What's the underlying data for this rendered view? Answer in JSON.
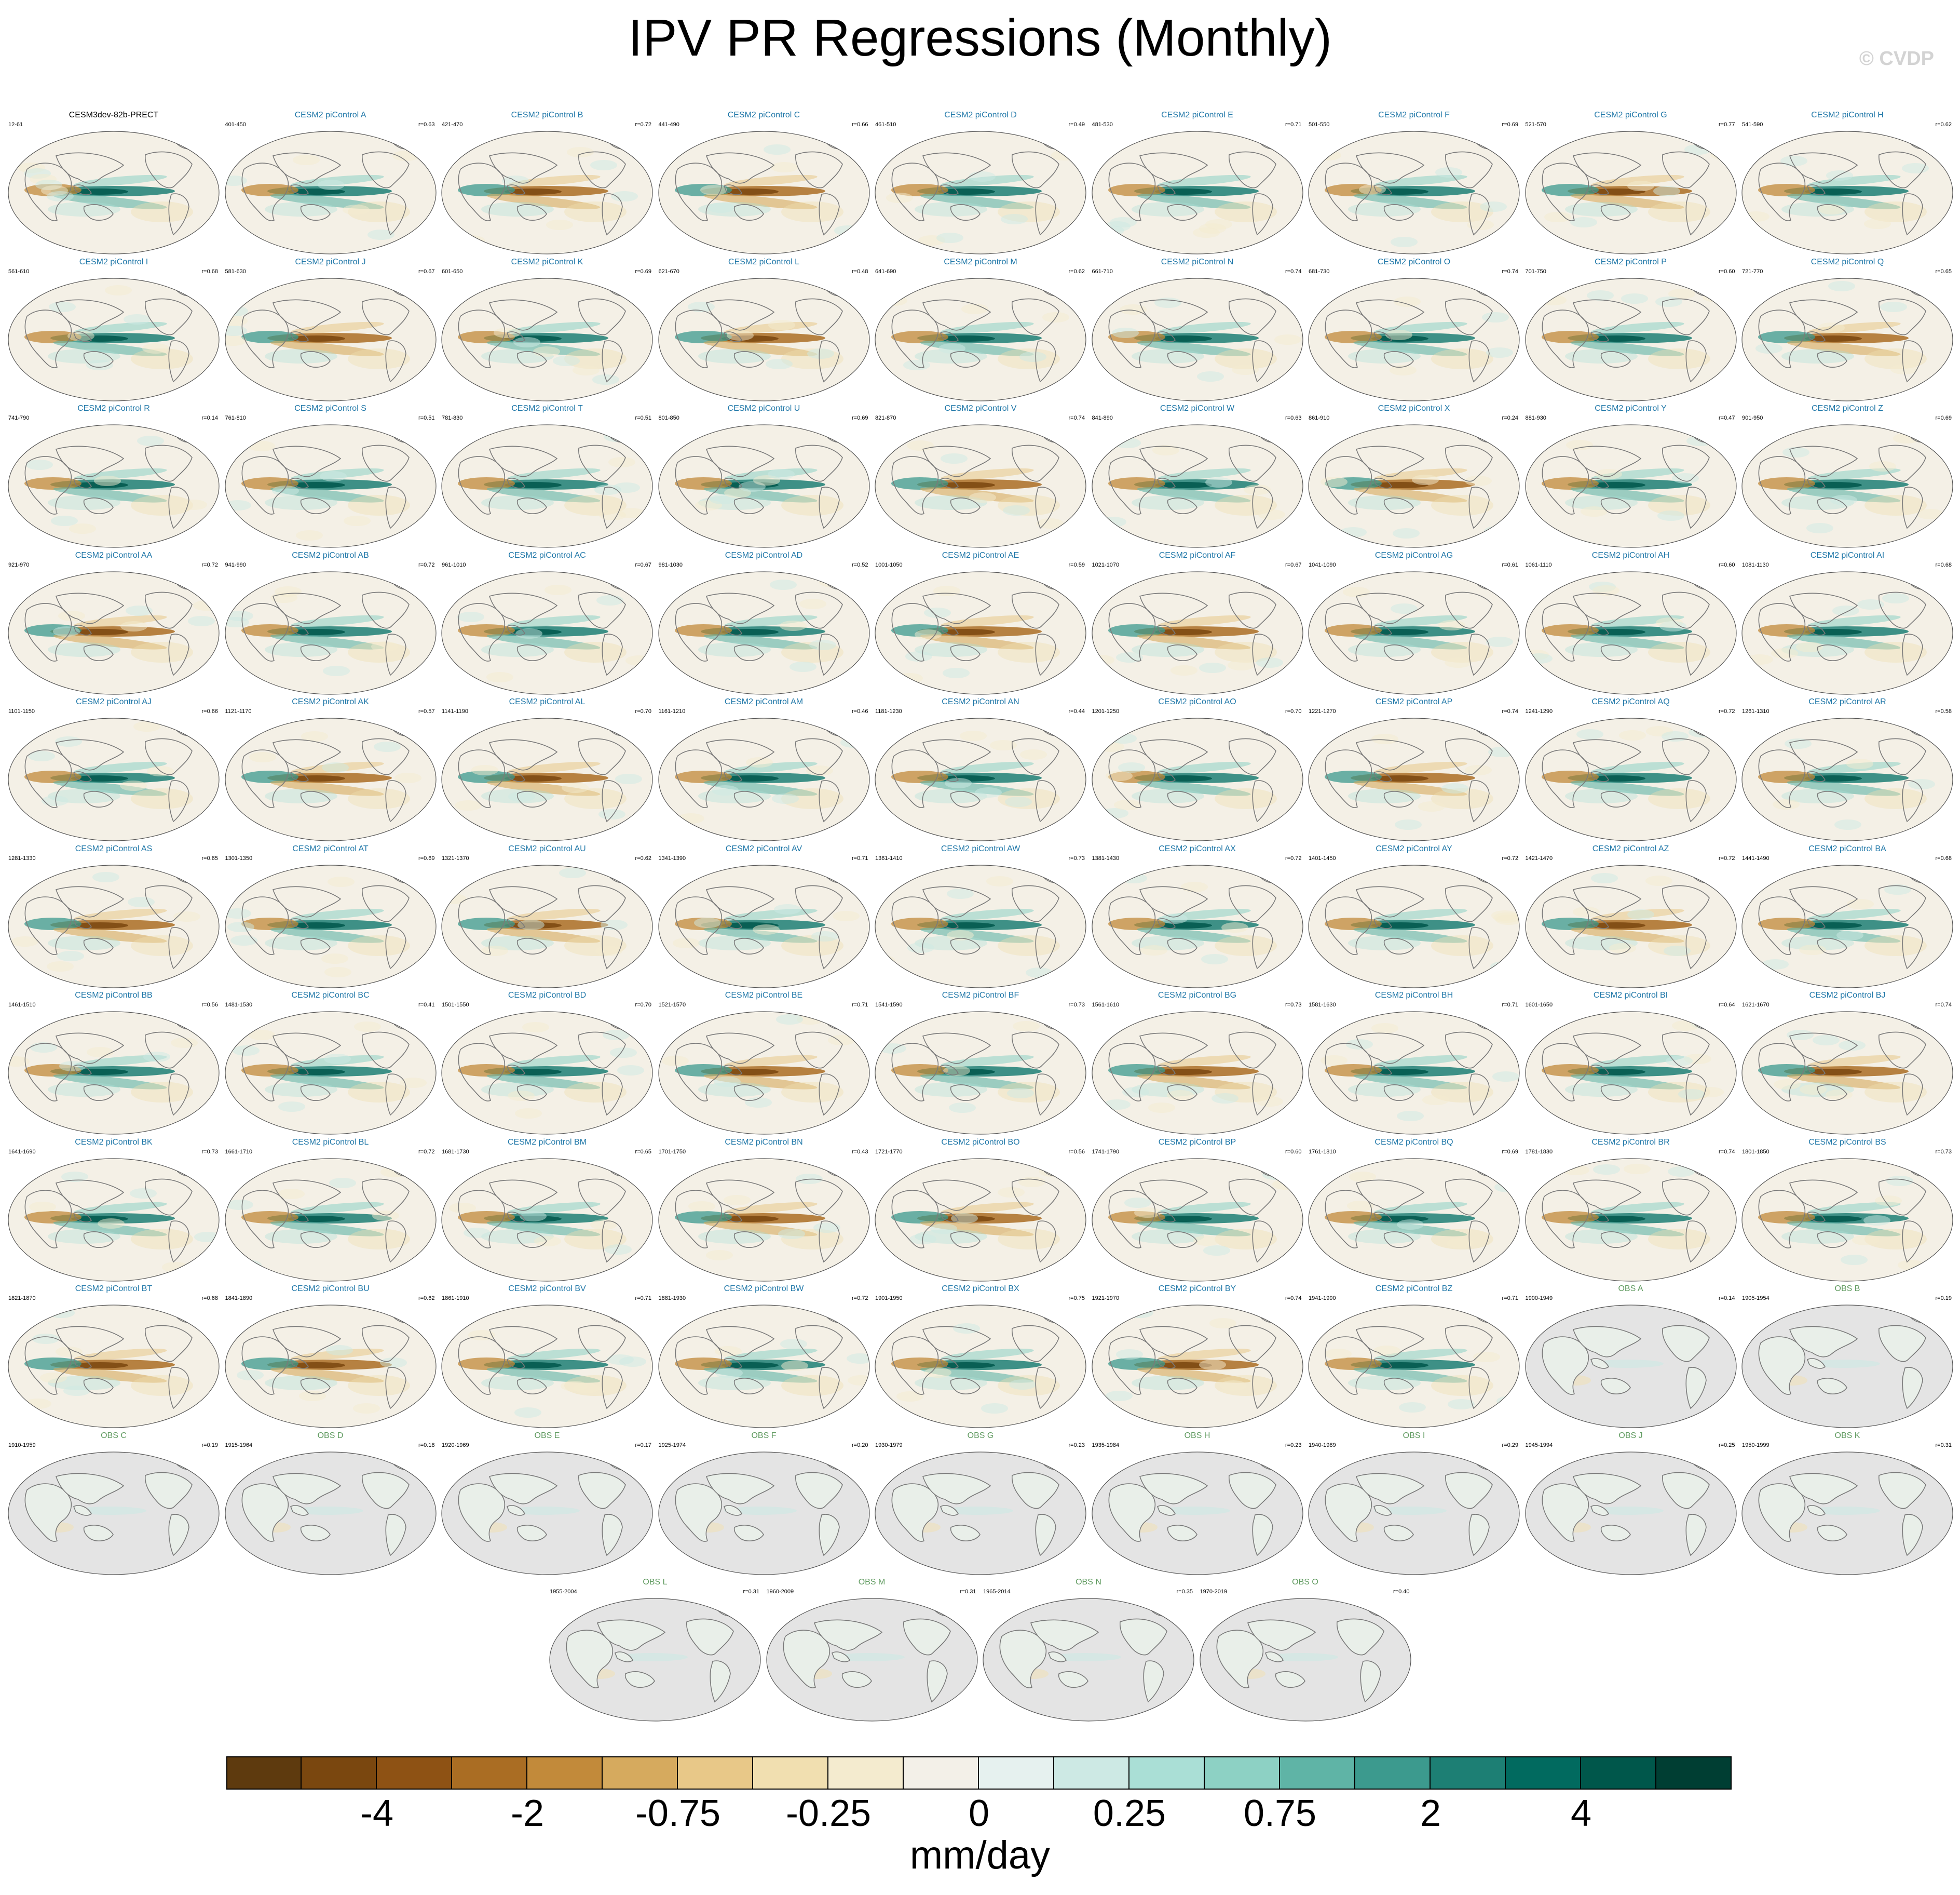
{
  "title": "IPV PR Regressions (Monthly)",
  "copyright": "© CVDP",
  "chart_data": {
    "type": "map-panel-grid",
    "title": "IPV PR Regressions (Monthly)",
    "variable": "PR (precipitation) regression onto IPV",
    "units": "mm/day",
    "projection": "Robinson, Pacific-centered",
    "colorbar": {
      "tick_labels": [
        "-4",
        "-2",
        "-0.75",
        "-0.25",
        "0",
        "0.25",
        "0.75",
        "2",
        "4"
      ],
      "colors": [
        "#5e3a0e",
        "#7a470f",
        "#8e5214",
        "#aa6d23",
        "#c28a3a",
        "#d6aa5e",
        "#e8c888",
        "#f1dfb0",
        "#f4ebcf",
        "#f3f0e8",
        "#e6f1ef",
        "#cde9e4",
        "#aadfd6",
        "#8dd1c4",
        "#5fb4a6",
        "#3c9a8e",
        "#1d7f74",
        "#016a5f",
        "#00574b",
        "#003e33"
      ]
    },
    "panels": [
      {
        "title": "CESM3dev-82b-PRECT",
        "years": "12-61",
        "r": "",
        "kind": "reference"
      },
      {
        "title": "CESM2 piControl A",
        "years": "401-450",
        "r": "r=0.63",
        "kind": "model"
      },
      {
        "title": "CESM2 piControl B",
        "years": "421-470",
        "r": "r=0.72",
        "kind": "model"
      },
      {
        "title": "CESM2 piControl C",
        "years": "441-490",
        "r": "r=0.66",
        "kind": "model"
      },
      {
        "title": "CESM2 piControl D",
        "years": "461-510",
        "r": "r=0.49",
        "kind": "model"
      },
      {
        "title": "CESM2 piControl E",
        "years": "481-530",
        "r": "r=0.71",
        "kind": "model"
      },
      {
        "title": "CESM2 piControl F",
        "years": "501-550",
        "r": "r=0.69",
        "kind": "model"
      },
      {
        "title": "CESM2 piControl G",
        "years": "521-570",
        "r": "r=0.77",
        "kind": "model"
      },
      {
        "title": "CESM2 piControl H",
        "years": "541-590",
        "r": "r=0.62",
        "kind": "model"
      },
      {
        "title": "CESM2 piControl I",
        "years": "561-610",
        "r": "r=0.68",
        "kind": "model"
      },
      {
        "title": "CESM2 piControl J",
        "years": "581-630",
        "r": "r=0.67",
        "kind": "model"
      },
      {
        "title": "CESM2 piControl K",
        "years": "601-650",
        "r": "r=0.69",
        "kind": "model"
      },
      {
        "title": "CESM2 piControl L",
        "years": "621-670",
        "r": "r=0.48",
        "kind": "model"
      },
      {
        "title": "CESM2 piControl M",
        "years": "641-690",
        "r": "r=0.62",
        "kind": "model"
      },
      {
        "title": "CESM2 piControl N",
        "years": "661-710",
        "r": "r=0.74",
        "kind": "model"
      },
      {
        "title": "CESM2 piControl O",
        "years": "681-730",
        "r": "r=0.74",
        "kind": "model"
      },
      {
        "title": "CESM2 piControl P",
        "years": "701-750",
        "r": "r=0.60",
        "kind": "model"
      },
      {
        "title": "CESM2 piControl Q",
        "years": "721-770",
        "r": "r=0.65",
        "kind": "model"
      },
      {
        "title": "CESM2 piControl R",
        "years": "741-790",
        "r": "r=0.14",
        "kind": "model"
      },
      {
        "title": "CESM2 piControl S",
        "years": "761-810",
        "r": "r=0.51",
        "kind": "model"
      },
      {
        "title": "CESM2 piControl T",
        "years": "781-830",
        "r": "r=0.51",
        "kind": "model"
      },
      {
        "title": "CESM2 piControl U",
        "years": "801-850",
        "r": "r=0.69",
        "kind": "model"
      },
      {
        "title": "CESM2 piControl V",
        "years": "821-870",
        "r": "r=0.74",
        "kind": "model"
      },
      {
        "title": "CESM2 piControl W",
        "years": "841-890",
        "r": "r=0.63",
        "kind": "model"
      },
      {
        "title": "CESM2 piControl X",
        "years": "861-910",
        "r": "r=0.24",
        "kind": "model"
      },
      {
        "title": "CESM2 piControl Y",
        "years": "881-930",
        "r": "r=0.47",
        "kind": "model"
      },
      {
        "title": "CESM2 piControl Z",
        "years": "901-950",
        "r": "r=0.69",
        "kind": "model"
      },
      {
        "title": "CESM2 piControl AA",
        "years": "921-970",
        "r": "r=0.72",
        "kind": "model"
      },
      {
        "title": "CESM2 piControl AB",
        "years": "941-990",
        "r": "r=0.72",
        "kind": "model"
      },
      {
        "title": "CESM2 piControl AC",
        "years": "961-1010",
        "r": "r=0.67",
        "kind": "model"
      },
      {
        "title": "CESM2 piControl AD",
        "years": "981-1030",
        "r": "r=0.52",
        "kind": "model"
      },
      {
        "title": "CESM2 piControl AE",
        "years": "1001-1050",
        "r": "r=0.59",
        "kind": "model"
      },
      {
        "title": "CESM2 piControl AF",
        "years": "1021-1070",
        "r": "r=0.67",
        "kind": "model"
      },
      {
        "title": "CESM2 piControl AG",
        "years": "1041-1090",
        "r": "r=0.61",
        "kind": "model"
      },
      {
        "title": "CESM2 piControl AH",
        "years": "1061-1110",
        "r": "r=0.60",
        "kind": "model"
      },
      {
        "title": "CESM2 piControl AI",
        "years": "1081-1130",
        "r": "r=0.68",
        "kind": "model"
      },
      {
        "title": "CESM2 piControl AJ",
        "years": "1101-1150",
        "r": "r=0.66",
        "kind": "model"
      },
      {
        "title": "CESM2 piControl AK",
        "years": "1121-1170",
        "r": "r=0.57",
        "kind": "model"
      },
      {
        "title": "CESM2 piControl AL",
        "years": "1141-1190",
        "r": "r=0.70",
        "kind": "model"
      },
      {
        "title": "CESM2 piControl AM",
        "years": "1161-1210",
        "r": "r=0.46",
        "kind": "model"
      },
      {
        "title": "CESM2 piControl AN",
        "years": "1181-1230",
        "r": "r=0.44",
        "kind": "model"
      },
      {
        "title": "CESM2 piControl AO",
        "years": "1201-1250",
        "r": "r=0.70",
        "kind": "model"
      },
      {
        "title": "CESM2 piControl AP",
        "years": "1221-1270",
        "r": "r=0.74",
        "kind": "model"
      },
      {
        "title": "CESM2 piControl AQ",
        "years": "1241-1290",
        "r": "r=0.72",
        "kind": "model"
      },
      {
        "title": "CESM2 piControl AR",
        "years": "1261-1310",
        "r": "r=0.58",
        "kind": "model"
      },
      {
        "title": "CESM2 piControl AS",
        "years": "1281-1330",
        "r": "r=0.65",
        "kind": "model"
      },
      {
        "title": "CESM2 piControl AT",
        "years": "1301-1350",
        "r": "r=0.69",
        "kind": "model"
      },
      {
        "title": "CESM2 piControl AU",
        "years": "1321-1370",
        "r": "r=0.62",
        "kind": "model"
      },
      {
        "title": "CESM2 piControl AV",
        "years": "1341-1390",
        "r": "r=0.71",
        "kind": "model"
      },
      {
        "title": "CESM2 piControl AW",
        "years": "1361-1410",
        "r": "r=0.73",
        "kind": "model"
      },
      {
        "title": "CESM2 piControl AX",
        "years": "1381-1430",
        "r": "r=0.72",
        "kind": "model"
      },
      {
        "title": "CESM2 piControl AY",
        "years": "1401-1450",
        "r": "r=0.72",
        "kind": "model"
      },
      {
        "title": "CESM2 piControl AZ",
        "years": "1421-1470",
        "r": "r=0.72",
        "kind": "model"
      },
      {
        "title": "CESM2 piControl BA",
        "years": "1441-1490",
        "r": "r=0.68",
        "kind": "model"
      },
      {
        "title": "CESM2 piControl BB",
        "years": "1461-1510",
        "r": "r=0.56",
        "kind": "model"
      },
      {
        "title": "CESM2 piControl BC",
        "years": "1481-1530",
        "r": "r=0.41",
        "kind": "model"
      },
      {
        "title": "CESM2 piControl BD",
        "years": "1501-1550",
        "r": "r=0.70",
        "kind": "model"
      },
      {
        "title": "CESM2 piControl BE",
        "years": "1521-1570",
        "r": "r=0.71",
        "kind": "model"
      },
      {
        "title": "CESM2 piControl BF",
        "years": "1541-1590",
        "r": "r=0.73",
        "kind": "model"
      },
      {
        "title": "CESM2 piControl BG",
        "years": "1561-1610",
        "r": "r=0.73",
        "kind": "model"
      },
      {
        "title": "CESM2 piControl BH",
        "years": "1581-1630",
        "r": "r=0.71",
        "kind": "model"
      },
      {
        "title": "CESM2 piControl BI",
        "years": "1601-1650",
        "r": "r=0.64",
        "kind": "model"
      },
      {
        "title": "CESM2 piControl BJ",
        "years": "1621-1670",
        "r": "r=0.74",
        "kind": "model"
      },
      {
        "title": "CESM2 piControl BK",
        "years": "1641-1690",
        "r": "r=0.73",
        "kind": "model"
      },
      {
        "title": "CESM2 piControl BL",
        "years": "1661-1710",
        "r": "r=0.72",
        "kind": "model"
      },
      {
        "title": "CESM2 piControl BM",
        "years": "1681-1730",
        "r": "r=0.65",
        "kind": "model"
      },
      {
        "title": "CESM2 piControl BN",
        "years": "1701-1750",
        "r": "r=0.43",
        "kind": "model"
      },
      {
        "title": "CESM2 piControl BO",
        "years": "1721-1770",
        "r": "r=0.56",
        "kind": "model"
      },
      {
        "title": "CESM2 piControl BP",
        "years": "1741-1790",
        "r": "r=0.60",
        "kind": "model"
      },
      {
        "title": "CESM2 piControl BQ",
        "years": "1761-1810",
        "r": "r=0.69",
        "kind": "model"
      },
      {
        "title": "CESM2 piControl BR",
        "years": "1781-1830",
        "r": "r=0.74",
        "kind": "model"
      },
      {
        "title": "CESM2 piControl BS",
        "years": "1801-1850",
        "r": "r=0.73",
        "kind": "model"
      },
      {
        "title": "CESM2 piControl BT",
        "years": "1821-1870",
        "r": "r=0.68",
        "kind": "model"
      },
      {
        "title": "CESM2 piControl BU",
        "years": "1841-1890",
        "r": "r=0.62",
        "kind": "model"
      },
      {
        "title": "CESM2 piControl BV",
        "years": "1861-1910",
        "r": "r=0.71",
        "kind": "model"
      },
      {
        "title": "CESM2 piControl BW",
        "years": "1881-1930",
        "r": "r=0.72",
        "kind": "model"
      },
      {
        "title": "CESM2 piControl BX",
        "years": "1901-1950",
        "r": "r=0.75",
        "kind": "model"
      },
      {
        "title": "CESM2 piControl BY",
        "years": "1921-1970",
        "r": "r=0.74",
        "kind": "model"
      },
      {
        "title": "CESM2 piControl BZ",
        "years": "1941-1990",
        "r": "r=0.71",
        "kind": "model"
      },
      {
        "title": "OBS A",
        "years": "1900-1949",
        "r": "r=0.14",
        "kind": "obs"
      },
      {
        "title": "OBS B",
        "years": "1905-1954",
        "r": "r=0.19",
        "kind": "obs"
      },
      {
        "title": "OBS C",
        "years": "1910-1959",
        "r": "r=0.19",
        "kind": "obs"
      },
      {
        "title": "OBS D",
        "years": "1915-1964",
        "r": "r=0.18",
        "kind": "obs"
      },
      {
        "title": "OBS E",
        "years": "1920-1969",
        "r": "r=0.17",
        "kind": "obs"
      },
      {
        "title": "OBS F",
        "years": "1925-1974",
        "r": "r=0.20",
        "kind": "obs"
      },
      {
        "title": "OBS G",
        "years": "1930-1979",
        "r": "r=0.23",
        "kind": "obs"
      },
      {
        "title": "OBS H",
        "years": "1935-1984",
        "r": "r=0.23",
        "kind": "obs"
      },
      {
        "title": "OBS I",
        "years": "1940-1989",
        "r": "r=0.29",
        "kind": "obs"
      },
      {
        "title": "OBS J",
        "years": "1945-1994",
        "r": "r=0.25",
        "kind": "obs"
      },
      {
        "title": "OBS K",
        "years": "1950-1999",
        "r": "r=0.31",
        "kind": "obs"
      },
      {
        "title": "OBS L",
        "years": "1955-2004",
        "r": "r=0.31",
        "kind": "obs"
      },
      {
        "title": "OBS M",
        "years": "1960-2009",
        "r": "r=0.31",
        "kind": "obs"
      },
      {
        "title": "OBS N",
        "years": "1965-2014",
        "r": "r=0.35",
        "kind": "obs"
      },
      {
        "title": "OBS O",
        "years": "1970-2019",
        "r": "r=0.40",
        "kind": "obs"
      }
    ]
  }
}
